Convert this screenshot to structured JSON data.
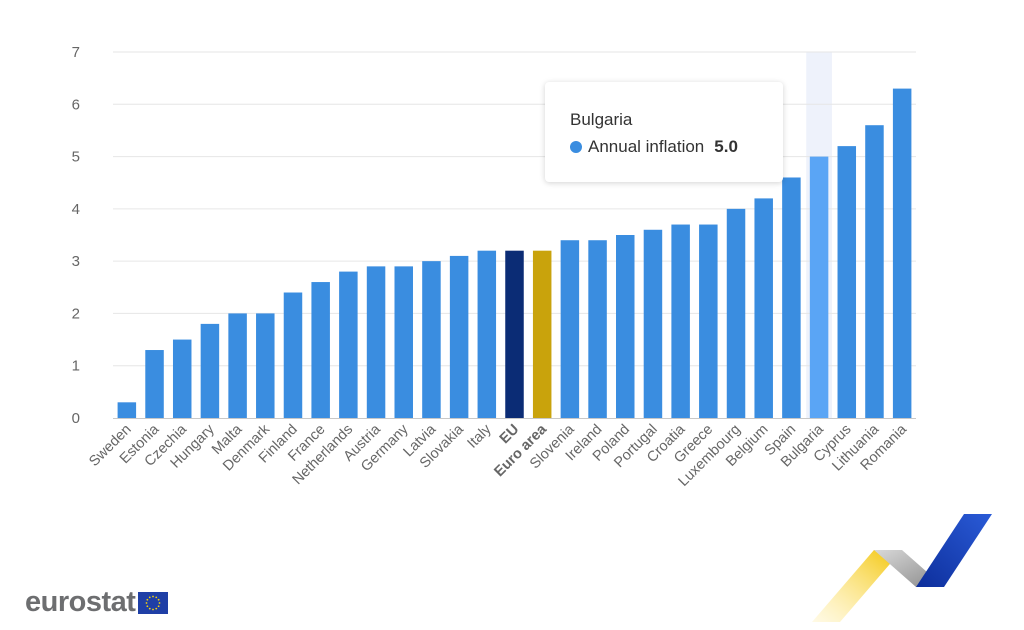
{
  "chart_data": {
    "type": "bar",
    "categories": [
      "Sweden",
      "Estonia",
      "Czechia",
      "Hungary",
      "Malta",
      "Denmark",
      "Finland",
      "France",
      "Netherlands",
      "Austria",
      "Germany",
      "Latvia",
      "Slovakia",
      "Italy",
      "EU",
      "Euro area",
      "Slovenia",
      "Ireland",
      "Poland",
      "Portugal",
      "Croatia",
      "Greece",
      "Luxembourg",
      "Belgium",
      "Spain",
      "Bulgaria",
      "Cyprus",
      "Lithuania",
      "Romania"
    ],
    "values": [
      0.3,
      1.3,
      1.5,
      1.8,
      2.0,
      2.0,
      2.4,
      2.6,
      2.8,
      2.9,
      2.9,
      3.0,
      3.1,
      3.2,
      3.2,
      3.2,
      3.4,
      3.4,
      3.5,
      3.6,
      3.7,
      3.7,
      4.0,
      4.2,
      4.6,
      5.0,
      5.2,
      5.6,
      6.3
    ],
    "bold_categories": [
      "EU",
      "Euro area"
    ],
    "highlighted": "Bulgaria",
    "ylim": [
      0,
      7
    ],
    "yticks": [
      0,
      1,
      2,
      3,
      4,
      5,
      6,
      7
    ],
    "grid": true,
    "legend": "none",
    "colors": {
      "default": "#3a8de0",
      "eu": "#0b2c75",
      "euro_area": "#c9a30c",
      "highlight": "#5aa5f5",
      "hover_band": "#eef2fb"
    }
  },
  "tooltip": {
    "title": "Bulgaria",
    "series": "Annual inflation",
    "value": "5.0",
    "dot_color": "#3a8de0"
  },
  "logo": {
    "text": "eurostat"
  }
}
